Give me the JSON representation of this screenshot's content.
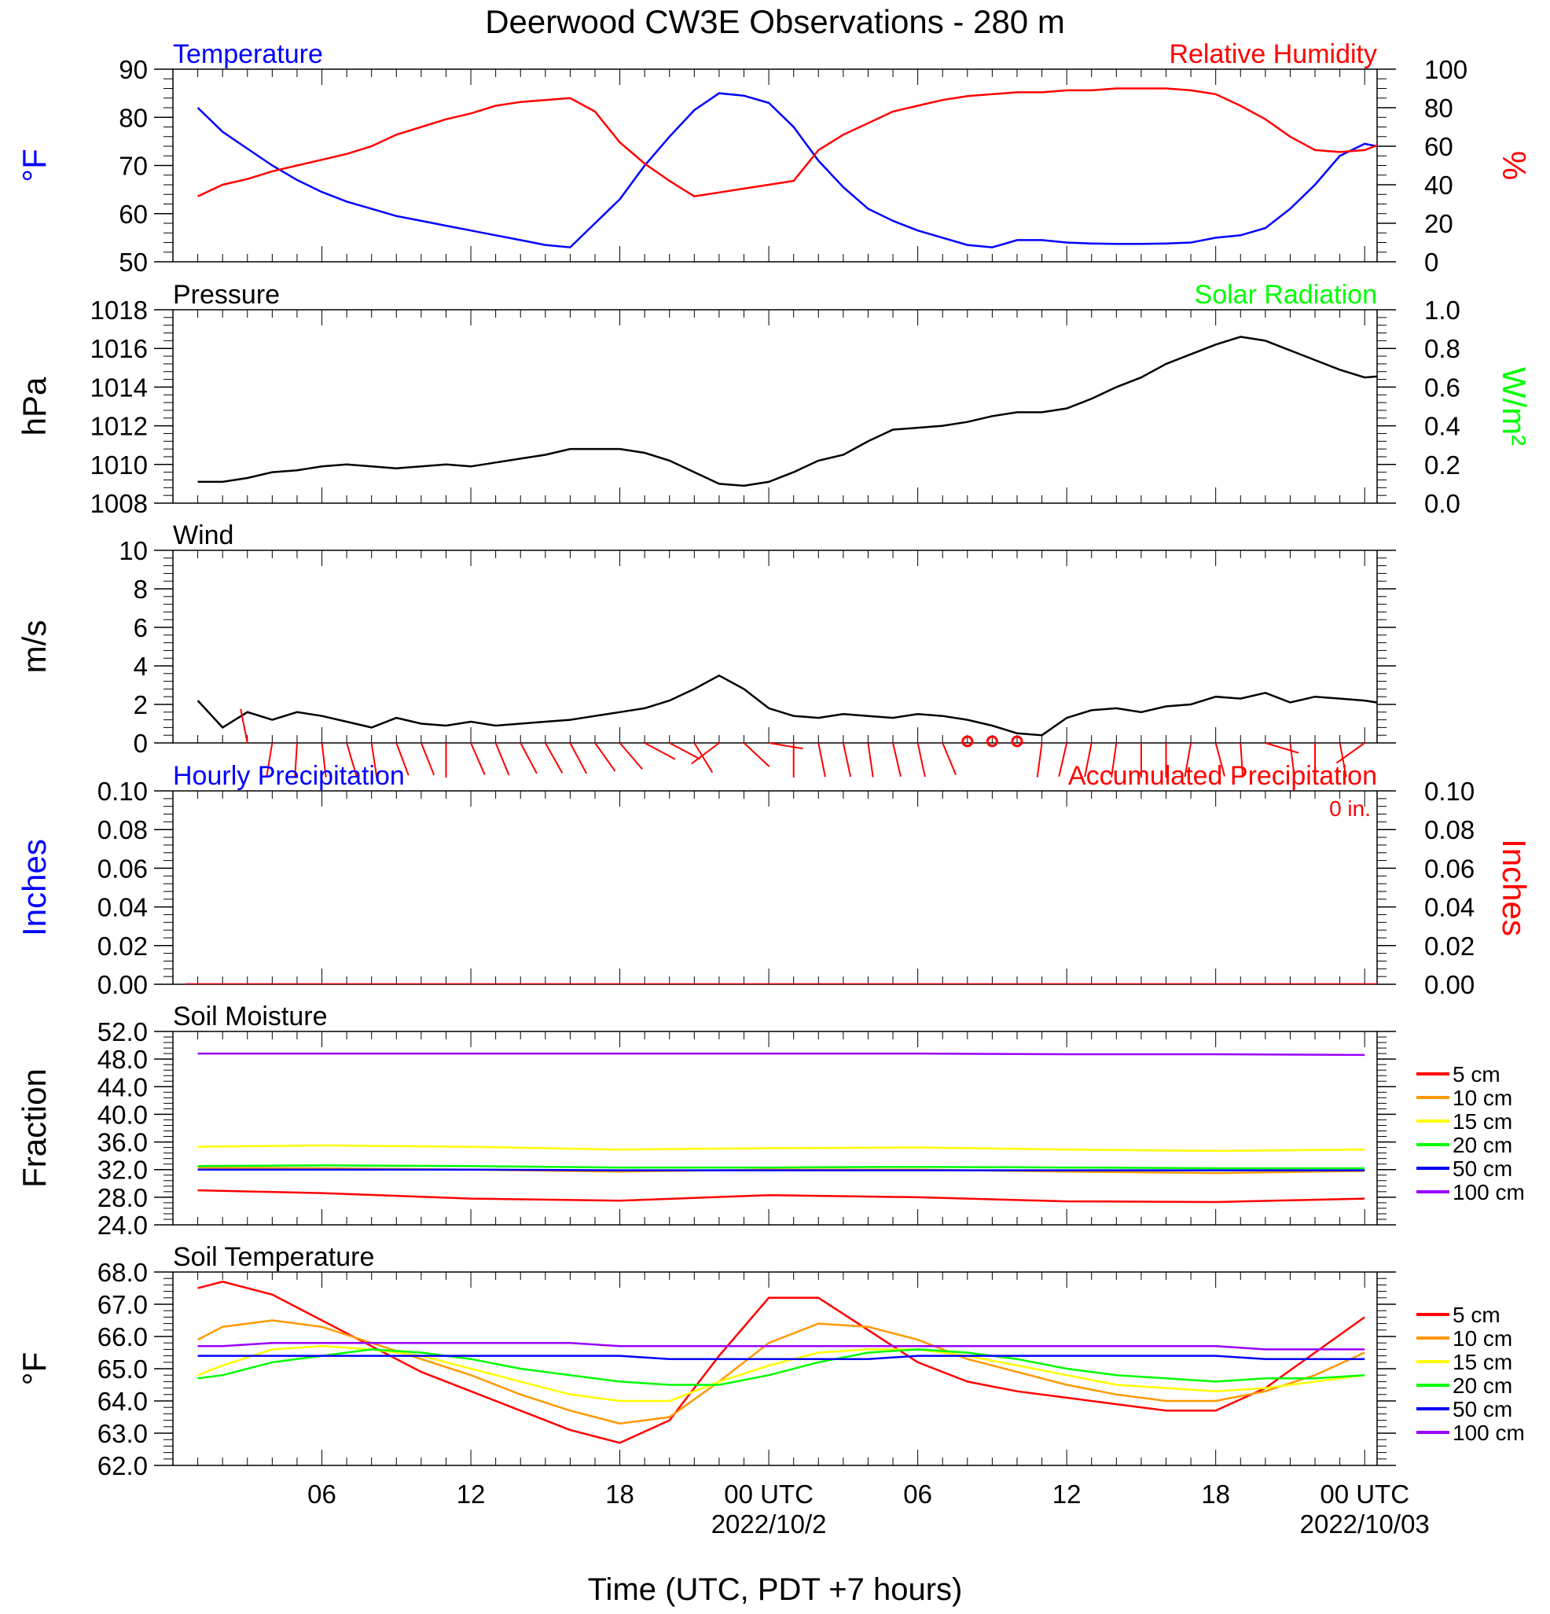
{
  "title": "Deerwood CW3E Observations - 280 m",
  "xlabel": "Time (UTC, PDT +7 hours)",
  "x_ticks": [
    {
      "label": "06",
      "hour": 6
    },
    {
      "label": "12",
      "hour": 12
    },
    {
      "label": "18",
      "hour": 18
    },
    {
      "label": "00 UTC",
      "hour": 24,
      "date": "2022/10/2"
    },
    {
      "label": "06",
      "hour": 30
    },
    {
      "label": "12",
      "hour": 36
    },
    {
      "label": "18",
      "hour": 42
    },
    {
      "label": "00 UTC",
      "hour": 48,
      "date": "2022/10/03"
    }
  ],
  "colors": {
    "blue": "#0000ff",
    "red": "#ff0000",
    "green": "#00ff00",
    "black": "#000000",
    "orange": "#ff9900",
    "yellow": "#ffff00",
    "purple": "#9900ff"
  },
  "chart_data": [
    {
      "type": "line",
      "title_left": "Temperature",
      "title_right": "Relative Humidity",
      "ylabel_left": "°F",
      "ylabel_right": "%",
      "ylim_left": [
        50,
        90
      ],
      "yticks_left": [
        "50",
        "60",
        "70",
        "80",
        "90"
      ],
      "ylim_right": [
        0,
        100
      ],
      "yticks_right": [
        "0",
        "20",
        "40",
        "60",
        "80",
        "100"
      ],
      "x_hours": [
        1,
        2,
        3,
        4,
        5,
        6,
        7,
        8,
        9,
        10,
        11,
        12,
        13,
        14,
        15,
        16,
        17,
        18,
        19,
        20,
        21,
        22,
        23,
        24,
        25,
        26,
        27,
        28,
        29,
        30,
        31,
        32,
        33,
        34,
        35,
        36,
        37,
        38,
        39,
        40,
        41,
        42,
        43,
        44,
        45,
        46,
        47,
        48,
        49
      ],
      "series": [
        {
          "name": "Temperature",
          "axis": "left",
          "color": "#0000ff",
          "values": [
            82,
            77,
            73.5,
            70,
            67,
            64.5,
            62.5,
            61,
            59.5,
            58.5,
            57.5,
            56.5,
            55.5,
            54.5,
            53.5,
            53,
            58,
            63,
            70,
            76,
            81.5,
            85,
            84.5,
            83,
            78,
            71,
            65.5,
            61,
            58.5,
            56.5,
            55,
            53.5,
            53,
            54.5,
            54.5,
            54,
            53.8,
            53.7,
            53.7,
            53.8,
            54,
            55,
            55.5,
            57,
            61,
            66,
            72,
            74.5,
            73.5
          ]
        },
        {
          "name": "Relative Humidity",
          "axis": "right",
          "color": "#ff0000",
          "values": [
            34,
            40,
            43,
            47,
            50,
            53,
            56,
            60,
            66,
            70,
            74,
            77,
            81,
            83,
            84,
            85,
            78,
            62,
            51,
            42,
            34,
            36,
            38,
            40,
            42,
            58,
            66,
            72,
            78,
            81,
            84,
            86,
            87,
            88,
            88,
            89,
            89,
            90,
            90,
            90,
            89,
            87,
            81,
            74,
            65,
            58,
            57,
            58,
            63
          ]
        }
      ]
    },
    {
      "type": "line",
      "title_left": "Pressure",
      "title_right": "Solar Radiation",
      "ylabel_left": "hPa",
      "ylabel_right": "W/m²",
      "ylim_left": [
        1008,
        1018
      ],
      "yticks_left": [
        "1008",
        "1010",
        "1012",
        "1014",
        "1016",
        "1018"
      ],
      "ylim_right": [
        0,
        1
      ],
      "yticks_right": [
        "0.0",
        "0.2",
        "0.4",
        "0.6",
        "0.8",
        "1.0"
      ],
      "x_hours": [
        1,
        2,
        3,
        4,
        5,
        6,
        7,
        8,
        9,
        10,
        11,
        12,
        13,
        14,
        15,
        16,
        17,
        18,
        19,
        20,
        21,
        22,
        23,
        24,
        25,
        26,
        27,
        28,
        29,
        30,
        31,
        32,
        33,
        34,
        35,
        36,
        37,
        38,
        39,
        40,
        41,
        42,
        43,
        44,
        45,
        46,
        47,
        48,
        49
      ],
      "series": [
        {
          "name": "Pressure",
          "axis": "left",
          "color": "#000000",
          "values": [
            1009.1,
            1009.1,
            1009.3,
            1009.6,
            1009.7,
            1009.9,
            1010.0,
            1009.9,
            1009.8,
            1009.9,
            1010.0,
            1009.9,
            1010.1,
            1010.3,
            1010.5,
            1010.8,
            1010.8,
            1010.8,
            1010.6,
            1010.2,
            1009.6,
            1009.0,
            1008.9,
            1009.1,
            1009.6,
            1010.2,
            1010.5,
            1011.2,
            1011.8,
            1011.9,
            1012.0,
            1012.2,
            1012.5,
            1012.7,
            1012.7,
            1012.9,
            1013.4,
            1014.0,
            1014.5,
            1015.2,
            1015.7,
            1016.2,
            1016.6,
            1016.4,
            1015.9,
            1015.4,
            1014.9,
            1014.5,
            1014.6
          ]
        }
      ]
    },
    {
      "type": "line",
      "title_left": "Wind",
      "ylabel_left": "m/s",
      "ylim_left": [
        0,
        10
      ],
      "yticks_left": [
        "0",
        "2",
        "4",
        "6",
        "8",
        "10"
      ],
      "x_hours": [
        1,
        2,
        3,
        4,
        5,
        6,
        7,
        8,
        9,
        10,
        11,
        12,
        13,
        14,
        15,
        16,
        17,
        18,
        19,
        20,
        21,
        22,
        23,
        24,
        25,
        26,
        27,
        28,
        29,
        30,
        31,
        32,
        33,
        34,
        35,
        36,
        37,
        38,
        39,
        40,
        41,
        42,
        43,
        44,
        45,
        46,
        47,
        48,
        49
      ],
      "series": [
        {
          "name": "Wind speed",
          "axis": "left",
          "color": "#000000",
          "values": [
            2.2,
            0.8,
            1.6,
            1.2,
            1.6,
            1.4,
            1.1,
            0.8,
            1.3,
            1.0,
            0.9,
            1.1,
            0.9,
            1.0,
            1.1,
            1.2,
            1.4,
            1.6,
            1.8,
            2.2,
            2.8,
            3.5,
            2.8,
            1.8,
            1.4,
            1.3,
            1.5,
            1.4,
            1.3,
            1.5,
            1.4,
            1.2,
            0.9,
            0.5,
            0.4,
            1.3,
            1.7,
            1.8,
            1.6,
            1.9,
            2.0,
            2.4,
            2.3,
            2.6,
            2.1,
            2.4,
            2.3,
            2.2,
            2.0
          ]
        }
      ],
      "barbs": [
        {
          "hour": 3,
          "u": 0.4,
          "v": 2.0,
          "flag": true
        },
        {
          "hour": 4,
          "u": -0.3,
          "v": 1.8
        },
        {
          "hour": 5,
          "u": -0.1,
          "v": 1.6
        },
        {
          "hour": 6,
          "u": 0.2,
          "v": 1.7
        },
        {
          "hour": 7,
          "u": 0.5,
          "v": 1.7
        },
        {
          "hour": 8,
          "u": 0.3,
          "v": 2.0
        },
        {
          "hour": 9,
          "u": 0.6,
          "v": 1.6
        },
        {
          "hour": 10,
          "u": 0.6,
          "v": 1.5
        },
        {
          "hour": 11,
          "u": 0.0,
          "v": 1.9
        },
        {
          "hour": 12,
          "u": 0.7,
          "v": 1.6
        },
        {
          "hour": 13,
          "u": 0.7,
          "v": 1.7
        },
        {
          "hour": 14,
          "u": 0.8,
          "v": 1.5
        },
        {
          "hour": 15,
          "u": 0.9,
          "v": 1.6
        },
        {
          "hour": 16,
          "u": 0.8,
          "v": 1.5
        },
        {
          "hour": 17,
          "u": 1.0,
          "v": 1.4
        },
        {
          "hour": 18,
          "u": 1.2,
          "v": 1.4
        },
        {
          "hour": 19,
          "u": 1.5,
          "v": 0.8
        },
        {
          "hour": 20,
          "u": 1.7,
          "v": 0.9
        },
        {
          "hour": 21,
          "u": 1.1,
          "v": 1.8
        },
        {
          "hour": 22,
          "u": -1.2,
          "v": 0.9
        },
        {
          "hour": 23,
          "u": 1.5,
          "v": 1.4
        },
        {
          "hour": 24,
          "u": 1.8,
          "v": 0.3
        },
        {
          "hour": 25,
          "u": 0.0,
          "v": 1.3
        },
        {
          "hour": 26,
          "u": 0.3,
          "v": 1.5
        },
        {
          "hour": 27,
          "u": 0.3,
          "v": 1.4
        },
        {
          "hour": 28,
          "u": 0.2,
          "v": 1.4
        },
        {
          "hour": 29,
          "u": 0.3,
          "v": 1.3
        },
        {
          "hour": 30,
          "u": 0.3,
          "v": 1.4
        },
        {
          "hour": 31,
          "u": 0.5,
          "v": 1.2
        },
        {
          "hour": 32,
          "u": 0.0,
          "v": 0.0,
          "calm": true
        },
        {
          "hour": 33,
          "u": 0.0,
          "v": 0.0,
          "calm": true
        },
        {
          "hour": 34,
          "u": 0.0,
          "v": 0.0,
          "calm": true
        },
        {
          "hour": 35,
          "u": -0.2,
          "v": 1.5
        },
        {
          "hour": 36,
          "u": -0.3,
          "v": 1.3
        },
        {
          "hour": 37,
          "u": -0.3,
          "v": 1.5
        },
        {
          "hour": 38,
          "u": -0.2,
          "v": 1.4
        },
        {
          "hour": 39,
          "u": 0.0,
          "v": 1.6
        },
        {
          "hour": 40,
          "u": 0.0,
          "v": 1.4
        },
        {
          "hour": 41,
          "u": -0.3,
          "v": 1.7
        },
        {
          "hour": 42,
          "u": 0.4,
          "v": 1.5
        },
        {
          "hour": 43,
          "u": 0.1,
          "v": 1.5
        },
        {
          "hour": 44,
          "u": 1.0,
          "v": 0.3
        },
        {
          "hour": 45,
          "u": 0.2,
          "v": 1.6
        },
        {
          "hour": 46,
          "u": 0.0,
          "v": 1.7
        },
        {
          "hour": 47,
          "u": 0.3,
          "v": 1.6
        },
        {
          "hour": 48,
          "u": -0.7,
          "v": 0.5
        }
      ]
    },
    {
      "type": "line",
      "title_left": "Hourly Precipitation",
      "title_right": "Accumulated Precipitation",
      "annotation": "0 in.",
      "ylabel_left": "Inches",
      "ylabel_right": "Inches",
      "ylim_left": [
        0,
        0.1
      ],
      "yticks_left": [
        "0.00",
        "0.02",
        "0.04",
        "0.06",
        "0.08",
        "0.10"
      ],
      "ylim_right": [
        0,
        0.1
      ],
      "yticks_right": [
        "0.00",
        "0.02",
        "0.04",
        "0.06",
        "0.08",
        "0.10"
      ],
      "x_hours": [
        0.5,
        48.5
      ],
      "series": [
        {
          "name": "Hourly Precipitation",
          "axis": "left",
          "color": "#0000ff",
          "values": [
            0,
            0
          ]
        },
        {
          "name": "Accumulated Precipitation",
          "axis": "right",
          "color": "#ff0000",
          "values": [
            0,
            0
          ]
        }
      ]
    },
    {
      "type": "line",
      "title_left": "Soil Moisture",
      "ylabel_left": "Fraction",
      "ylim_left": [
        24,
        52
      ],
      "yticks_left": [
        "24.0",
        "28.0",
        "32.0",
        "36.0",
        "40.0",
        "44.0",
        "48.0",
        "52.0"
      ],
      "x_hours": [
        1,
        6,
        12,
        18,
        24,
        30,
        36,
        42,
        48
      ],
      "legend": [
        "5 cm",
        "10 cm",
        "15 cm",
        "20 cm",
        "50 cm",
        "100 cm"
      ],
      "series": [
        {
          "name": "5 cm",
          "color": "#ff0000",
          "values": [
            29.0,
            28.6,
            27.8,
            27.5,
            28.3,
            28.0,
            27.4,
            27.3,
            27.8
          ]
        },
        {
          "name": "10 cm",
          "color": "#ff9900",
          "values": [
            32.3,
            32.2,
            32.0,
            31.7,
            32.0,
            32.0,
            31.7,
            31.5,
            31.8
          ]
        },
        {
          "name": "15 cm",
          "color": "#ffff00",
          "values": [
            35.3,
            35.5,
            35.3,
            34.9,
            35.1,
            35.2,
            34.9,
            34.7,
            34.9
          ]
        },
        {
          "name": "20 cm",
          "color": "#00ff00",
          "values": [
            32.5,
            32.6,
            32.5,
            32.3,
            32.3,
            32.4,
            32.3,
            32.2,
            32.2
          ]
        },
        {
          "name": "50 cm",
          "color": "#0000ff",
          "values": [
            32.0,
            32.0,
            32.0,
            31.9,
            31.9,
            31.9,
            31.9,
            31.9,
            31.9
          ]
        },
        {
          "name": "100 cm",
          "color": "#9900ff",
          "values": [
            48.8,
            48.8,
            48.8,
            48.8,
            48.8,
            48.8,
            48.7,
            48.7,
            48.6
          ]
        }
      ]
    },
    {
      "type": "line",
      "title_left": "Soil Temperature",
      "ylabel_left": "°F",
      "ylim_left": [
        62,
        68
      ],
      "yticks_left": [
        "62.0",
        "63.0",
        "64.0",
        "65.0",
        "66.0",
        "67.0",
        "68.0"
      ],
      "x_hours": [
        1,
        2,
        4,
        6,
        8,
        10,
        12,
        14,
        16,
        18,
        20,
        22,
        24,
        26,
        28,
        30,
        32,
        34,
        36,
        38,
        40,
        42,
        44,
        46,
        48
      ],
      "legend": [
        "5 cm",
        "10 cm",
        "15 cm",
        "20 cm",
        "50 cm",
        "100 cm"
      ],
      "series": [
        {
          "name": "5 cm",
          "color": "#ff0000",
          "values": [
            67.5,
            67.7,
            67.3,
            66.5,
            65.7,
            64.9,
            64.3,
            63.7,
            63.1,
            62.7,
            63.4,
            65.4,
            67.2,
            67.2,
            66.2,
            65.2,
            64.6,
            64.3,
            64.1,
            63.9,
            63.7,
            63.7,
            64.4,
            65.5,
            66.6
          ]
        },
        {
          "name": "10 cm",
          "color": "#ff9900",
          "values": [
            65.9,
            66.3,
            66.5,
            66.3,
            65.8,
            65.3,
            64.8,
            64.2,
            63.7,
            63.3,
            63.5,
            64.6,
            65.8,
            66.4,
            66.3,
            65.9,
            65.3,
            64.9,
            64.5,
            64.2,
            64.0,
            64.0,
            64.3,
            64.8,
            65.5
          ]
        },
        {
          "name": "15 cm",
          "color": "#ffff00",
          "values": [
            64.8,
            65.1,
            65.6,
            65.7,
            65.6,
            65.4,
            65.0,
            64.6,
            64.2,
            64.0,
            64.0,
            64.6,
            65.1,
            65.5,
            65.6,
            65.6,
            65.4,
            65.1,
            64.8,
            64.5,
            64.4,
            64.3,
            64.4,
            64.6,
            64.8
          ]
        },
        {
          "name": "20 cm",
          "color": "#00ff00",
          "values": [
            64.7,
            64.8,
            65.2,
            65.4,
            65.6,
            65.5,
            65.3,
            65.0,
            64.8,
            64.6,
            64.5,
            64.5,
            64.8,
            65.2,
            65.5,
            65.6,
            65.5,
            65.3,
            65.0,
            64.8,
            64.7,
            64.6,
            64.7,
            64.7,
            64.8
          ]
        },
        {
          "name": "50 cm",
          "color": "#0000ff",
          "values": [
            65.4,
            65.4,
            65.4,
            65.4,
            65.4,
            65.4,
            65.4,
            65.4,
            65.4,
            65.4,
            65.3,
            65.3,
            65.3,
            65.3,
            65.3,
            65.4,
            65.4,
            65.4,
            65.4,
            65.4,
            65.4,
            65.4,
            65.3,
            65.3,
            65.3
          ]
        },
        {
          "name": "100 cm",
          "color": "#9900ff",
          "values": [
            65.7,
            65.7,
            65.8,
            65.8,
            65.8,
            65.8,
            65.8,
            65.8,
            65.8,
            65.7,
            65.7,
            65.7,
            65.7,
            65.7,
            65.7,
            65.7,
            65.7,
            65.7,
            65.7,
            65.7,
            65.7,
            65.7,
            65.6,
            65.6,
            65.6
          ]
        }
      ]
    }
  ]
}
